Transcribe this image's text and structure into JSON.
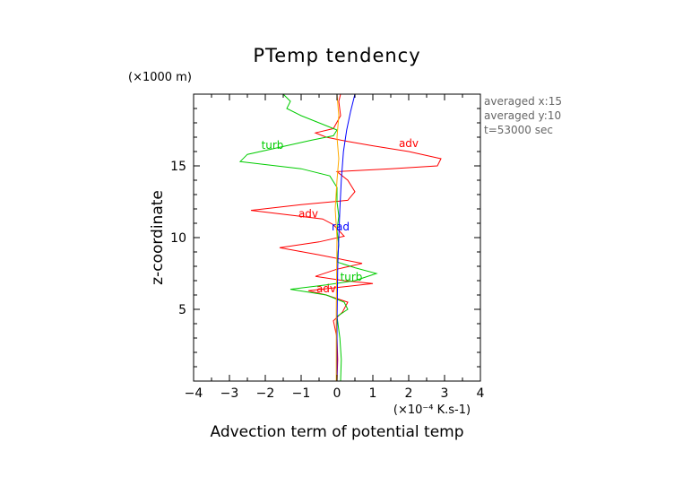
{
  "chart_data": {
    "type": "line",
    "title": "PTemp tendency",
    "xlabel": "Advection term of potential temp",
    "xunit": "(×10⁻⁴ K.s-1)",
    "ylabel": "z-coordinate",
    "yunit": "(×1000 m)",
    "xlim": [
      -4,
      4
    ],
    "ylim": [
      0,
      20
    ],
    "xticks": [
      -4,
      -3,
      -2,
      -1,
      0,
      1,
      2,
      3,
      4
    ],
    "xtick_labels": [
      "−4",
      "−3",
      "−2",
      "−1",
      "0",
      "1",
      "2",
      "3",
      "4"
    ],
    "yticks": [
      5,
      10,
      15
    ],
    "ytick_labels": [
      "5",
      "10",
      "15"
    ],
    "info": [
      "averaged  x:15",
      "averaged  y:10",
      "t=53000 sec"
    ],
    "grid": false,
    "series": [
      {
        "name": "adv",
        "color": "#ff0000",
        "labels": [
          {
            "text": "adv",
            "x": 2.0,
            "y": 16.3
          },
          {
            "text": "adv",
            "x": -0.8,
            "y": 11.4
          },
          {
            "text": "adv",
            "x": -0.3,
            "y": 6.2
          }
        ],
        "points": [
          [
            0.0,
            0.0
          ],
          [
            0.02,
            1.5
          ],
          [
            0.0,
            3.0
          ],
          [
            -0.1,
            4.2
          ],
          [
            0.15,
            4.8
          ],
          [
            0.3,
            5.5
          ],
          [
            -0.3,
            6.0
          ],
          [
            -0.8,
            6.3
          ],
          [
            0.3,
            6.6
          ],
          [
            1.0,
            6.8
          ],
          [
            0.2,
            7.0
          ],
          [
            -0.6,
            7.3
          ],
          [
            0.0,
            7.8
          ],
          [
            0.7,
            8.2
          ],
          [
            -0.5,
            8.8
          ],
          [
            -1.6,
            9.3
          ],
          [
            -0.5,
            9.7
          ],
          [
            0.2,
            10.1
          ],
          [
            0.05,
            10.5
          ],
          [
            -0.1,
            10.9
          ],
          [
            -0.4,
            11.3
          ],
          [
            -2.4,
            11.9
          ],
          [
            -1.0,
            12.3
          ],
          [
            0.3,
            12.6
          ],
          [
            0.5,
            13.2
          ],
          [
            0.3,
            14.0
          ],
          [
            0.0,
            14.6
          ],
          [
            1.5,
            14.8
          ],
          [
            2.8,
            15.0
          ],
          [
            2.9,
            15.5
          ],
          [
            2.0,
            16.0
          ],
          [
            1.0,
            16.4
          ],
          [
            0.3,
            16.7
          ],
          [
            -0.3,
            17.0
          ],
          [
            -0.6,
            17.3
          ],
          [
            -0.1,
            17.6
          ],
          [
            0.1,
            18.5
          ],
          [
            0.05,
            19.5
          ],
          [
            0.1,
            20.0
          ]
        ]
      },
      {
        "name": "turb",
        "color": "#00cc00",
        "labels": [
          {
            "text": "turb",
            "x": -1.8,
            "y": 16.2
          },
          {
            "text": "turb",
            "x": 0.4,
            "y": 7.0
          }
        ],
        "points": [
          [
            0.1,
            0.0
          ],
          [
            0.12,
            1.5
          ],
          [
            0.08,
            3.0
          ],
          [
            0.0,
            4.5
          ],
          [
            0.3,
            5.0
          ],
          [
            0.2,
            5.5
          ],
          [
            -0.3,
            6.0
          ],
          [
            -1.3,
            6.4
          ],
          [
            -0.3,
            6.7
          ],
          [
            0.5,
            7.0
          ],
          [
            1.1,
            7.5
          ],
          [
            0.5,
            7.9
          ],
          [
            0.0,
            8.3
          ],
          [
            0.05,
            9.5
          ],
          [
            0.0,
            10.5
          ],
          [
            0.05,
            11.5
          ],
          [
            0.0,
            12.5
          ],
          [
            0.0,
            13.5
          ],
          [
            -0.2,
            14.3
          ],
          [
            -1.0,
            14.8
          ],
          [
            -2.7,
            15.3
          ],
          [
            -2.5,
            15.8
          ],
          [
            -1.6,
            16.3
          ],
          [
            -0.7,
            16.8
          ],
          [
            -0.1,
            17.1
          ],
          [
            0.0,
            17.5
          ],
          [
            -0.5,
            18.0
          ],
          [
            -1.0,
            18.5
          ],
          [
            -1.4,
            19.0
          ],
          [
            -1.3,
            19.5
          ],
          [
            -1.5,
            20.0
          ]
        ]
      },
      {
        "name": "rad",
        "color": "#0000ff",
        "labels": [
          {
            "text": "rad",
            "x": 0.1,
            "y": 10.5
          }
        ],
        "points": [
          [
            0.0,
            0.0
          ],
          [
            0.0,
            4.0
          ],
          [
            0.02,
            8.0
          ],
          [
            0.05,
            10.0
          ],
          [
            0.08,
            12.0
          ],
          [
            0.12,
            14.0
          ],
          [
            0.18,
            16.0
          ],
          [
            0.27,
            17.5
          ],
          [
            0.38,
            18.8
          ],
          [
            0.5,
            20.0
          ]
        ]
      },
      {
        "name": "",
        "color": "#ffaa00",
        "labels": [],
        "points": [
          [
            -0.02,
            0.0
          ],
          [
            -0.02,
            5.0
          ],
          [
            0.0,
            10.0
          ],
          [
            -0.05,
            12.0
          ],
          [
            0.0,
            14.0
          ],
          [
            0.05,
            15.5
          ],
          [
            0.0,
            17.0
          ],
          [
            0.05,
            18.5
          ],
          [
            0.0,
            20.0
          ]
        ]
      }
    ]
  }
}
